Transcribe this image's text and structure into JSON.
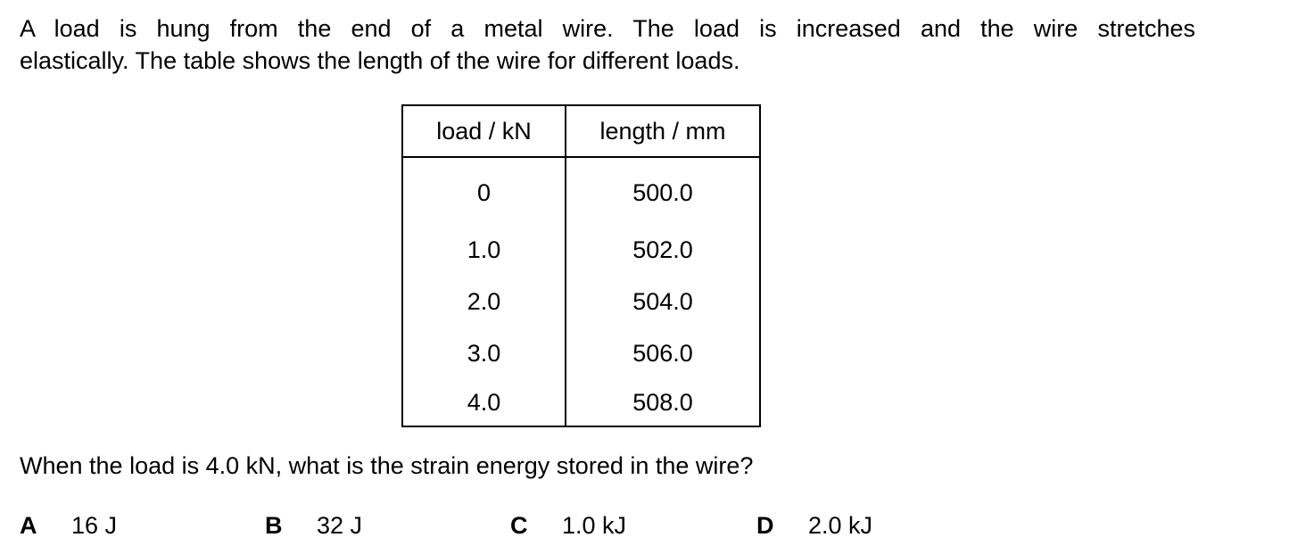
{
  "intro": {
    "line1": "A load is hung from the end of a metal wire. The load is increased and the wire stretches",
    "line2": "elastically. The table shows the length of the wire for different loads."
  },
  "table": {
    "headers": [
      "load / kN",
      "length / mm"
    ],
    "rows": [
      [
        "0",
        "500.0"
      ],
      [
        "1.0",
        "502.0"
      ],
      [
        "2.0",
        "504.0"
      ],
      [
        "3.0",
        "506.0"
      ],
      [
        "4.0",
        "508.0"
      ]
    ]
  },
  "question": "When the load is 4.0 kN, what is the strain energy stored in the wire?",
  "options": [
    {
      "letter": "A",
      "text": "16 J"
    },
    {
      "letter": "B",
      "text": "32 J"
    },
    {
      "letter": "C",
      "text": "1.0 kJ"
    },
    {
      "letter": "D",
      "text": "2.0 kJ"
    }
  ]
}
